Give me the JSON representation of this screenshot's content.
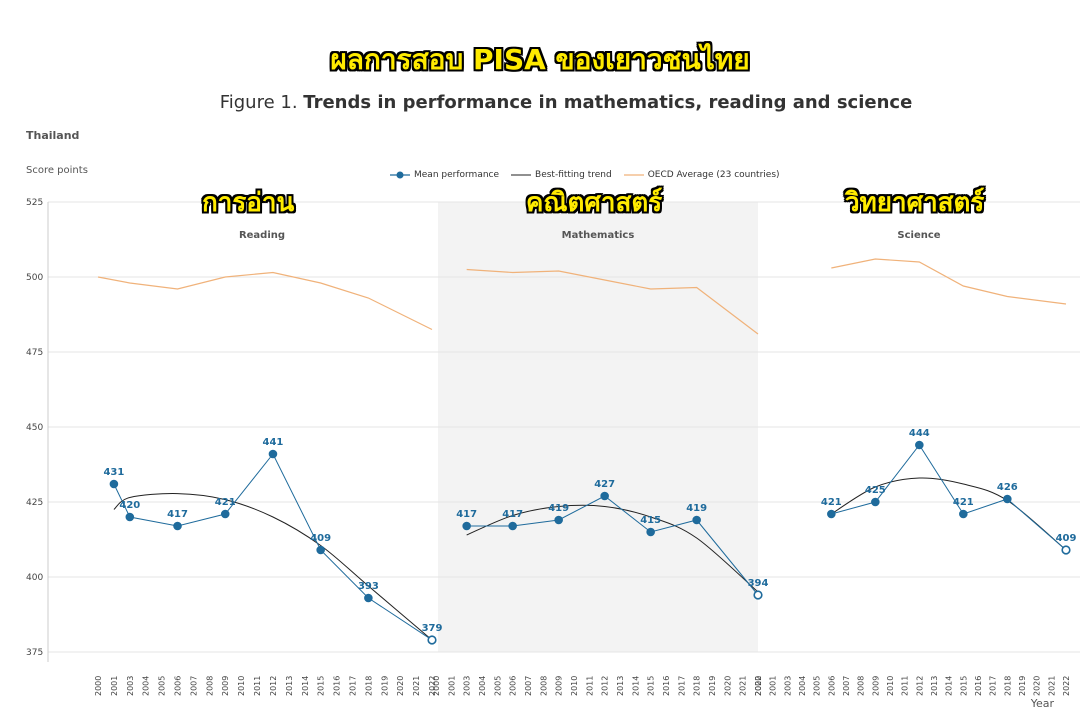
{
  "header": {
    "thai_title": "ผลการสอบ PISA ของเยาวชนไทย",
    "figure_prefix": "Figure 1.",
    "figure_title": "Trends in performance in mathematics, reading and science",
    "country": "Thailand",
    "y_unit": "Score points",
    "x_label": "Year"
  },
  "legend": {
    "mean": "Mean performance",
    "trend": "Best-fitting trend",
    "oecd": "OECD Average (23 countries)"
  },
  "colors": {
    "mean": "#1f6b9c",
    "trend": "#222222",
    "oecd": "#f0b27a",
    "shade": "#f3f3f3",
    "grid": "#e6e6e6"
  },
  "chart_data": {
    "type": "line",
    "ylim": [
      375,
      525
    ],
    "y_ticks": [
      375,
      400,
      425,
      450,
      475,
      500,
      525
    ],
    "years": [
      "2000",
      "2001",
      "2003",
      "2004",
      "2005",
      "2006",
      "2007",
      "2008",
      "2009",
      "2010",
      "2011",
      "2012",
      "2013",
      "2014",
      "2015",
      "2016",
      "2017",
      "2018",
      "2019",
      "2020",
      "2021",
      "2022"
    ],
    "panels": [
      {
        "name": "Reading",
        "thai_label": "การอ่าน",
        "shaded": false,
        "mean": {
          "x": [
            "2001",
            "2003",
            "2006",
            "2009",
            "2012",
            "2015",
            "2018",
            "2022"
          ],
          "y": [
            431,
            420,
            417,
            421,
            441,
            409,
            393,
            379
          ]
        },
        "trend": {
          "x": [
            "2001",
            "2003",
            "2006",
            "2009",
            "2012",
            "2015",
            "2018",
            "2022"
          ],
          "y": [
            422.5,
            426.5,
            427.8,
            425.8,
            420,
            410.5,
            397,
            379
          ]
        },
        "oecd": {
          "x": [
            "2000",
            "2003",
            "2006",
            "2009",
            "2012",
            "2015",
            "2018",
            "2022"
          ],
          "y": [
            500,
            498,
            496,
            500,
            501.5,
            498,
            493,
            482.5
          ]
        }
      },
      {
        "name": "Mathematics",
        "thai_label": "คณิตศาสตร์",
        "shaded": true,
        "mean": {
          "x": [
            "2003",
            "2006",
            "2009",
            "2012",
            "2015",
            "2018",
            "2022"
          ],
          "y": [
            417,
            417,
            419,
            427,
            415,
            419,
            394
          ]
        },
        "trend": {
          "x": [
            "2003",
            "2006",
            "2009",
            "2012",
            "2015",
            "2018",
            "2022"
          ],
          "y": [
            414,
            420.5,
            423.5,
            423.5,
            420,
            413,
            395
          ]
        },
        "oecd": {
          "x": [
            "2003",
            "2006",
            "2009",
            "2012",
            "2015",
            "2018",
            "2022"
          ],
          "y": [
            502.5,
            501.5,
            502,
            499,
            496,
            496.5,
            481
          ]
        }
      },
      {
        "name": "Science",
        "thai_label": "วิทยาศาสตร์",
        "shaded": false,
        "mean": {
          "x": [
            "2006",
            "2009",
            "2012",
            "2015",
            "2018",
            "2022"
          ],
          "y": [
            421,
            425,
            444,
            421,
            426,
            409
          ]
        },
        "trend": {
          "x": [
            "2006",
            "2009",
            "2012",
            "2015",
            "2018",
            "2022"
          ],
          "y": [
            421,
            430,
            433,
            431,
            425.5,
            409
          ]
        },
        "oecd": {
          "x": [
            "2006",
            "2009",
            "2012",
            "2015",
            "2018",
            "2022"
          ],
          "y": [
            503,
            506,
            505,
            497,
            493.5,
            491
          ]
        }
      }
    ]
  }
}
